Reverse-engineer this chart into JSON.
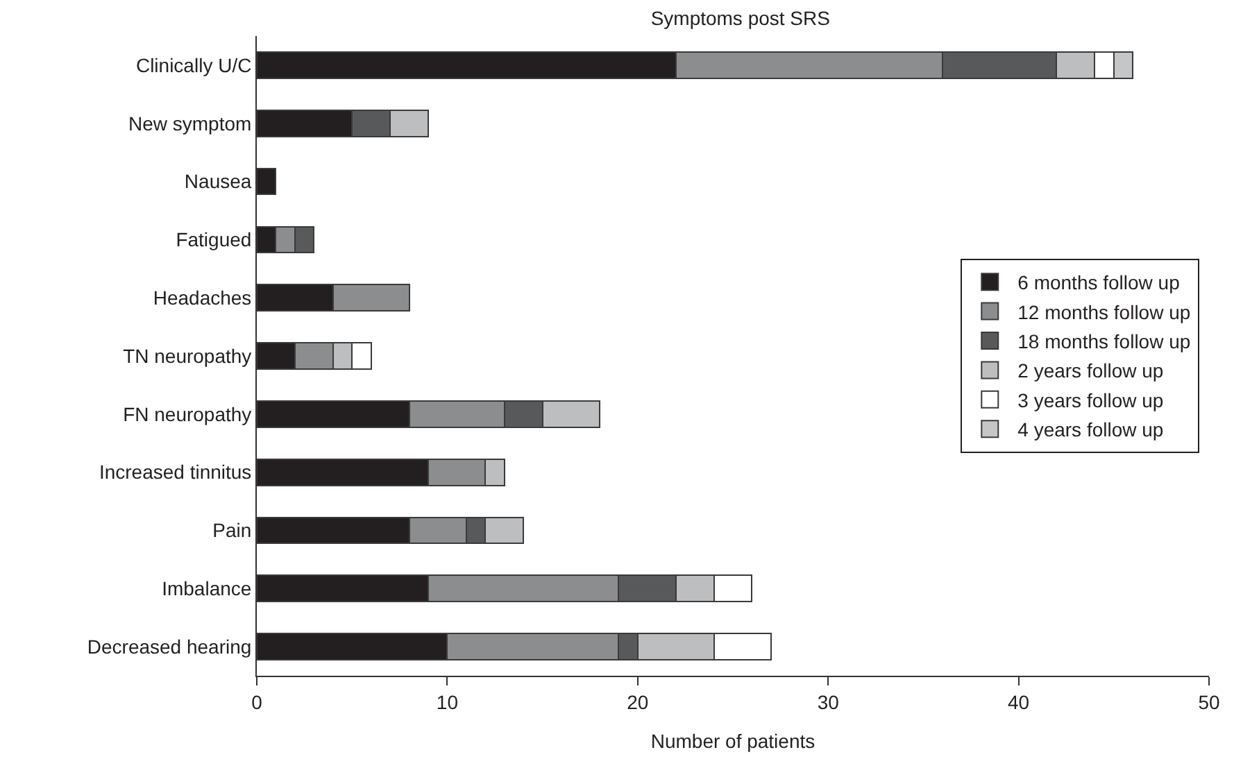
{
  "chart_data": {
    "type": "bar",
    "orientation": "horizontal",
    "stacked": true,
    "title": "Symptoms post SRS",
    "xlabel": "Number of patients",
    "categories": [
      "Clinically U/C",
      "New symptom",
      "Nausea",
      "Fatigued",
      "Headaches",
      "TN neuropathy",
      "FN neuropathy",
      "Increased tinnitus",
      "Pain",
      "Imbalance",
      "Decreased hearing"
    ],
    "series": [
      {
        "name": "6 months follow up",
        "color": "#231f20",
        "values": [
          22,
          5,
          1,
          1,
          4,
          2,
          8,
          9,
          8,
          9,
          10
        ]
      },
      {
        "name": "12 months follow up",
        "color": "#8c8d8f",
        "values": [
          14,
          0,
          0,
          1,
          4,
          2,
          5,
          3,
          3,
          10,
          9
        ]
      },
      {
        "name": "18 months follow up",
        "color": "#58595b",
        "values": [
          6,
          2,
          0,
          1,
          0,
          0,
          2,
          0,
          1,
          3,
          1
        ]
      },
      {
        "name": "2 years follow up",
        "color": "#bcbec0",
        "values": [
          2,
          2,
          0,
          0,
          0,
          1,
          3,
          1,
          2,
          2,
          4
        ]
      },
      {
        "name": "3 years follow up",
        "color": "#ffffff",
        "values": [
          1,
          0,
          0,
          0,
          0,
          1,
          0,
          0,
          0,
          2,
          3
        ]
      },
      {
        "name": "4 years follow up",
        "color": "#c4c6c8",
        "values": [
          1,
          0,
          0,
          0,
          0,
          0,
          0,
          0,
          0,
          0,
          0
        ]
      }
    ],
    "xlim": [
      0,
      50
    ],
    "xticks": [
      0,
      10,
      20,
      30,
      40,
      50
    ],
    "grid": false,
    "legend": "right"
  }
}
